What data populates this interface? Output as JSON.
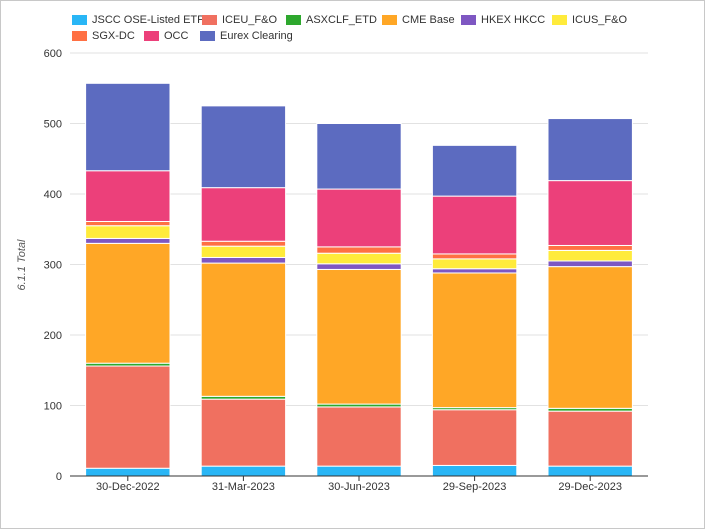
{
  "chart_data": {
    "type": "bar",
    "stacked": true,
    "ylabel": "6.1.1 Total",
    "ylim": [
      0,
      600
    ],
    "yticks": [
      0,
      100,
      200,
      300,
      400,
      500,
      600
    ],
    "grid": true,
    "legend_position": "top",
    "categories": [
      "30-Dec-2022",
      "31-Mar-2023",
      "30-Jun-2023",
      "29-Sep-2023",
      "29-Dec-2023"
    ],
    "series": [
      {
        "name": "JSCC OSE-Listed ETP",
        "color": "#29b6f6",
        "values": [
          11,
          14,
          14,
          15,
          14
        ]
      },
      {
        "name": "ICEU_F&O",
        "color": "#f07060",
        "values": [
          145,
          95,
          84,
          79,
          78
        ]
      },
      {
        "name": "ASXCLF_ETD",
        "color": "#2ea82e",
        "values": [
          4,
          4,
          4,
          3,
          4
        ]
      },
      {
        "name": "CME Base",
        "color": "#ffa726",
        "values": [
          170,
          189,
          191,
          191,
          201
        ]
      },
      {
        "name": "HKEX HKCC",
        "color": "#7e57c2",
        "values": [
          7,
          8,
          8,
          6,
          8
        ]
      },
      {
        "name": "ICUS_F&O",
        "color": "#ffeb3b",
        "values": [
          18,
          16,
          15,
          14,
          15
        ]
      },
      {
        "name": "SGX-DC",
        "color": "#ff7043",
        "values": [
          6,
          7,
          9,
          7,
          7
        ]
      },
      {
        "name": "OCC",
        "color": "#ec407a",
        "values": [
          72,
          76,
          82,
          82,
          92
        ]
      },
      {
        "name": "Eurex Clearing",
        "color": "#5c6bc0",
        "values": [
          124,
          116,
          93,
          72,
          88
        ]
      }
    ]
  }
}
